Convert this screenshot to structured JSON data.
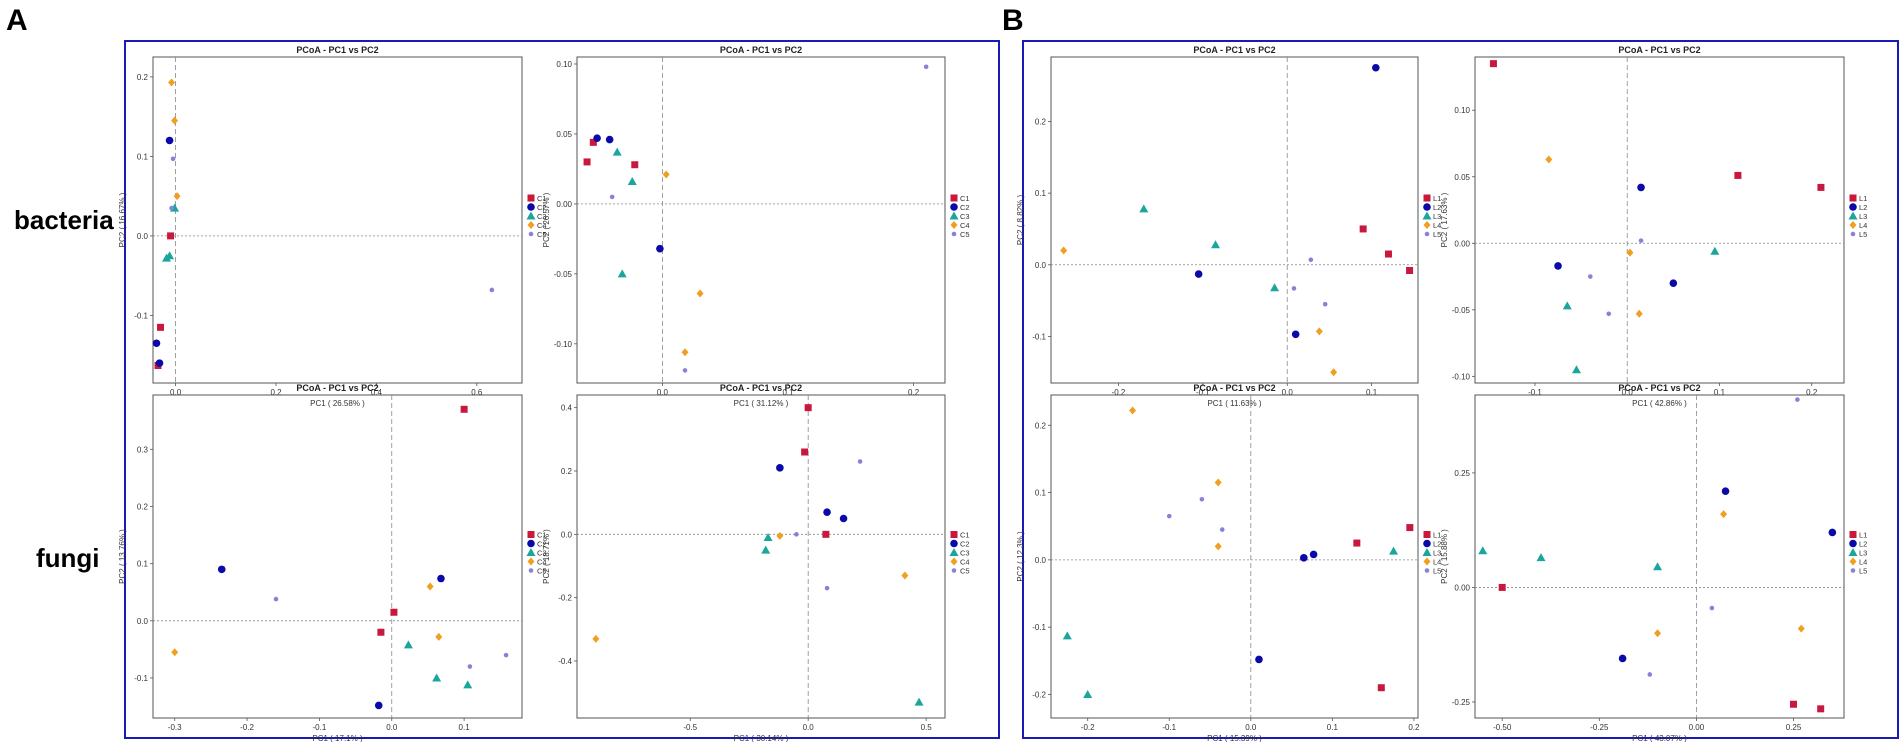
{
  "figure": {
    "panel_labels": [
      "A",
      "B"
    ],
    "row_labels": [
      "bacteria",
      "fungi"
    ]
  },
  "colors": {
    "box": "#1a1ab4",
    "series": [
      "#c8183e",
      "#0a0aa8",
      "#1aa69c",
      "#f0a020",
      "#8a80d8"
    ]
  },
  "chart_data": [
    {
      "type": "scatter",
      "title": "PCoA - PC1 vs PC2",
      "xlabel": "PC1 ( 26.58% )",
      "ylabel": "PC2 ( 16.67% )",
      "xlim": [
        -0.045,
        0.69
      ],
      "ylim": [
        -0.185,
        0.225
      ],
      "xticks": [
        0.0,
        0.2,
        0.4,
        0.6
      ],
      "xticklabels": [
        "0.0",
        "0.2",
        "0.4",
        "0.6"
      ],
      "yticks": [
        -0.1,
        0.0,
        0.1,
        0.2
      ],
      "yticklabels": [
        "-0.1",
        "0.0",
        "0.1",
        "0.2"
      ],
      "legend": [
        "C1",
        "C2",
        "C3",
        "C4",
        "C5"
      ],
      "series": [
        {
          "name": "C1",
          "marker": "square",
          "points": [
            [
              -0.035,
              -0.163
            ],
            [
              -0.03,
              -0.115
            ],
            [
              -0.01,
              0.0
            ]
          ]
        },
        {
          "name": "C2",
          "marker": "circle",
          "points": [
            [
              -0.038,
              -0.135
            ],
            [
              -0.032,
              -0.16
            ],
            [
              -0.012,
              0.12
            ]
          ]
        },
        {
          "name": "C3",
          "marker": "triangle",
          "points": [
            [
              -0.018,
              -0.028
            ],
            [
              -0.012,
              -0.025
            ],
            [
              -0.002,
              0.035
            ]
          ]
        },
        {
          "name": "C4",
          "marker": "diamond",
          "points": [
            [
              -0.008,
              0.193
            ],
            [
              -0.002,
              0.145
            ],
            [
              0.003,
              0.05
            ]
          ]
        },
        {
          "name": "C5",
          "marker": "star",
          "points": [
            [
              -0.005,
              0.097
            ],
            [
              -0.008,
              0.035
            ],
            [
              0.63,
              -0.068
            ]
          ]
        }
      ]
    },
    {
      "type": "scatter",
      "title": "PCoA - PC1 vs PC2",
      "xlabel": "PC1 ( 31.12% )",
      "ylabel": "PC2 ( 26.57% )",
      "xlim": [
        -0.068,
        0.225
      ],
      "ylim": [
        -0.128,
        0.105
      ],
      "xticks": [
        0.0,
        0.1,
        0.2
      ],
      "xticklabels": [
        "0.0",
        "0.1",
        "0.2"
      ],
      "yticks": [
        -0.1,
        -0.05,
        0.0,
        0.05,
        0.1
      ],
      "yticklabels": [
        "-0.10",
        "-0.05",
        "0.00",
        "0.05",
        "0.10"
      ],
      "legend": [
        "C1",
        "C2",
        "C3",
        "C4",
        "C5"
      ],
      "series": [
        {
          "name": "C1",
          "marker": "square",
          "points": [
            [
              -0.06,
              0.03
            ],
            [
              -0.055,
              0.044
            ],
            [
              -0.022,
              0.028
            ]
          ]
        },
        {
          "name": "C2",
          "marker": "circle",
          "points": [
            [
              -0.052,
              0.047
            ],
            [
              -0.042,
              0.046
            ],
            [
              -0.002,
              -0.032
            ]
          ]
        },
        {
          "name": "C3",
          "marker": "triangle",
          "points": [
            [
              -0.036,
              0.037
            ],
            [
              -0.024,
              0.016
            ],
            [
              -0.032,
              -0.05
            ]
          ]
        },
        {
          "name": "C4",
          "marker": "diamond",
          "points": [
            [
              0.003,
              0.021
            ],
            [
              0.03,
              -0.064
            ],
            [
              0.018,
              -0.106
            ]
          ]
        },
        {
          "name": "C5",
          "marker": "star",
          "points": [
            [
              -0.04,
              0.005
            ],
            [
              0.018,
              -0.119
            ],
            [
              0.21,
              0.098
            ]
          ]
        }
      ]
    },
    {
      "type": "scatter",
      "title": "PCoA - PC1 vs PC2",
      "xlabel": "PC1 ( 17.1% )",
      "ylabel": "PC2 ( 13.76% )",
      "xlim": [
        -0.33,
        0.18
      ],
      "ylim": [
        -0.17,
        0.395
      ],
      "xticks": [
        -0.3,
        -0.2,
        -0.1,
        0.0,
        0.1
      ],
      "xticklabels": [
        "-0.3",
        "-0.2",
        "-0.1",
        "0.0",
        "0.1"
      ],
      "yticks": [
        -0.1,
        0.0,
        0.1,
        0.2,
        0.3
      ],
      "yticklabels": [
        "-0.1",
        "0.0",
        "0.1",
        "0.2",
        "0.3"
      ],
      "legend": [
        "C1",
        "C2",
        "C3",
        "C4",
        "C5"
      ],
      "series": [
        {
          "name": "C1",
          "marker": "square",
          "points": [
            [
              0.1,
              0.37
            ],
            [
              0.003,
              0.015
            ],
            [
              -0.015,
              -0.02
            ]
          ]
        },
        {
          "name": "C2",
          "marker": "circle",
          "points": [
            [
              -0.235,
              0.09
            ],
            [
              0.068,
              0.074
            ],
            [
              -0.018,
              -0.148
            ]
          ]
        },
        {
          "name": "C3",
          "marker": "triangle",
          "points": [
            [
              0.023,
              -0.042
            ],
            [
              0.062,
              -0.1
            ],
            [
              0.105,
              -0.112
            ]
          ]
        },
        {
          "name": "C4",
          "marker": "diamond",
          "points": [
            [
              -0.3,
              -0.055
            ],
            [
              0.053,
              0.06
            ],
            [
              0.065,
              -0.028
            ]
          ]
        },
        {
          "name": "C5",
          "marker": "star",
          "points": [
            [
              -0.16,
              0.038
            ],
            [
              0.108,
              -0.08
            ],
            [
              0.158,
              -0.06
            ]
          ]
        }
      ]
    },
    {
      "type": "scatter",
      "title": "PCoA - PC1 vs PC2",
      "xlabel": "PC1 ( 30.14% )",
      "ylabel": "PC2 ( 18.71% )",
      "xlim": [
        -0.98,
        0.58
      ],
      "ylim": [
        -0.58,
        0.44
      ],
      "xticks": [
        -0.5,
        0.0,
        0.5
      ],
      "xticklabels": [
        "-0.5",
        "0.0",
        "0.5"
      ],
      "yticks": [
        -0.4,
        -0.2,
        0.0,
        0.2,
        0.4
      ],
      "yticklabels": [
        "-0.4",
        "-0.2",
        "0.0",
        "0.2",
        "0.4"
      ],
      "legend": [
        "C1",
        "C2",
        "C3",
        "C4",
        "C5"
      ],
      "series": [
        {
          "name": "C1",
          "marker": "square",
          "points": [
            [
              0.0,
              0.4
            ],
            [
              -0.015,
              0.26
            ],
            [
              0.075,
              0.0
            ]
          ]
        },
        {
          "name": "C2",
          "marker": "circle",
          "points": [
            [
              -0.12,
              0.21
            ],
            [
              0.08,
              0.07
            ],
            [
              0.15,
              0.05
            ]
          ]
        },
        {
          "name": "C3",
          "marker": "triangle",
          "points": [
            [
              -0.17,
              -0.01
            ],
            [
              -0.18,
              -0.05
            ],
            [
              0.47,
              -0.53
            ]
          ]
        },
        {
          "name": "C4",
          "marker": "diamond",
          "points": [
            [
              -0.9,
              -0.33
            ],
            [
              -0.12,
              -0.005
            ],
            [
              0.41,
              -0.13
            ]
          ]
        },
        {
          "name": "C5",
          "marker": "star",
          "points": [
            [
              -0.05,
              0.0
            ],
            [
              0.08,
              -0.17
            ],
            [
              0.22,
              0.23
            ]
          ]
        }
      ]
    },
    {
      "type": "scatter",
      "title": "PCoA - PC1 vs PC2",
      "xlabel": "PC1 ( 11.63% )",
      "ylabel": "PC2 ( 8.82% )",
      "xlim": [
        -0.28,
        0.155
      ],
      "ylim": [
        -0.165,
        0.29
      ],
      "xticks": [
        -0.2,
        -0.1,
        0.0,
        0.1
      ],
      "xticklabels": [
        "-0.2",
        "-0.1",
        "0.0",
        "0.1"
      ],
      "yticks": [
        -0.1,
        0.0,
        0.1,
        0.2
      ],
      "yticklabels": [
        "-0.1",
        "0.0",
        "0.1",
        "0.2"
      ],
      "legend": [
        "L1",
        "L2",
        "L3",
        "L4",
        "L5"
      ],
      "series": [
        {
          "name": "L1",
          "marker": "square",
          "points": [
            [
              0.09,
              0.05
            ],
            [
              0.12,
              0.015
            ],
            [
              0.145,
              -0.008
            ]
          ]
        },
        {
          "name": "L2",
          "marker": "circle",
          "points": [
            [
              0.105,
              0.275
            ],
            [
              -0.105,
              -0.013
            ],
            [
              0.01,
              -0.097
            ]
          ]
        },
        {
          "name": "L3",
          "marker": "triangle",
          "points": [
            [
              -0.17,
              0.078
            ],
            [
              -0.085,
              0.028
            ],
            [
              -0.015,
              -0.032
            ]
          ]
        },
        {
          "name": "L4",
          "marker": "diamond",
          "points": [
            [
              -0.265,
              0.02
            ],
            [
              0.038,
              -0.093
            ],
            [
              0.055,
              -0.15
            ]
          ]
        },
        {
          "name": "L5",
          "marker": "star",
          "points": [
            [
              0.028,
              0.007
            ],
            [
              0.008,
              -0.033
            ],
            [
              0.045,
              -0.055
            ]
          ]
        }
      ]
    },
    {
      "type": "scatter",
      "title": "PCoA - PC1 vs PC2",
      "xlabel": "PC1 ( 42.86% )",
      "ylabel": "PC2 ( 17.63% )",
      "xlim": [
        -0.165,
        0.235
      ],
      "ylim": [
        -0.105,
        0.14
      ],
      "xticks": [
        -0.1,
        0.0,
        0.1,
        0.2
      ],
      "xticklabels": [
        "-0.1",
        "0.0",
        "0.1",
        "0.2"
      ],
      "yticks": [
        -0.1,
        -0.05,
        0.0,
        0.05,
        0.1
      ],
      "yticklabels": [
        "-0.10",
        "-0.05",
        "0.00",
        "0.05",
        "0.10"
      ],
      "legend": [
        "L1",
        "L2",
        "L3",
        "L4",
        "L5"
      ],
      "series": [
        {
          "name": "L1",
          "marker": "square",
          "points": [
            [
              -0.145,
              0.135
            ],
            [
              0.12,
              0.051
            ],
            [
              0.21,
              0.042
            ]
          ]
        },
        {
          "name": "L2",
          "marker": "circle",
          "points": [
            [
              0.015,
              0.042
            ],
            [
              -0.075,
              -0.017
            ],
            [
              0.05,
              -0.03
            ]
          ]
        },
        {
          "name": "L3",
          "marker": "triangle",
          "points": [
            [
              -0.065,
              -0.047
            ],
            [
              -0.055,
              -0.095
            ],
            [
              0.095,
              -0.006
            ]
          ]
        },
        {
          "name": "L4",
          "marker": "diamond",
          "points": [
            [
              -0.085,
              0.063
            ],
            [
              0.003,
              -0.007
            ],
            [
              0.013,
              -0.053
            ]
          ]
        },
        {
          "name": "L5",
          "marker": "star",
          "points": [
            [
              0.015,
              0.002
            ],
            [
              -0.04,
              -0.025
            ],
            [
              -0.02,
              -0.053
            ]
          ]
        }
      ]
    },
    {
      "type": "scatter",
      "title": "PCoA - PC1 vs PC2",
      "xlabel": "PC1 ( 15.39% )",
      "ylabel": "PC2 ( 12.3% )",
      "xlim": [
        -0.245,
        0.205
      ],
      "ylim": [
        -0.235,
        0.245
      ],
      "xticks": [
        -0.2,
        -0.1,
        0.0,
        0.1,
        0.2
      ],
      "xticklabels": [
        "-0.2",
        "-0.1",
        "0.0",
        "0.1",
        "0.2"
      ],
      "yticks": [
        -0.2,
        -0.1,
        0.0,
        0.1,
        0.2
      ],
      "yticklabels": [
        "-0.2",
        "-0.1",
        "0.0",
        "0.1",
        "0.2"
      ],
      "legend": [
        "L1",
        "L2",
        "L3",
        "L4",
        "L5"
      ],
      "series": [
        {
          "name": "L1",
          "marker": "square",
          "points": [
            [
              0.195,
              0.048
            ],
            [
              0.13,
              0.025
            ],
            [
              0.16,
              -0.19
            ]
          ]
        },
        {
          "name": "L2",
          "marker": "circle",
          "points": [
            [
              0.065,
              0.003
            ],
            [
              0.077,
              0.008
            ],
            [
              0.01,
              -0.148
            ]
          ]
        },
        {
          "name": "L3",
          "marker": "triangle",
          "points": [
            [
              -0.225,
              -0.113
            ],
            [
              -0.2,
              -0.2
            ],
            [
              0.175,
              0.013
            ]
          ]
        },
        {
          "name": "L4",
          "marker": "diamond",
          "points": [
            [
              -0.145,
              0.222
            ],
            [
              -0.04,
              0.115
            ],
            [
              -0.04,
              0.02
            ]
          ]
        },
        {
          "name": "L5",
          "marker": "star",
          "points": [
            [
              -0.1,
              0.065
            ],
            [
              -0.06,
              0.09
            ],
            [
              -0.035,
              0.045
            ]
          ]
        }
      ]
    },
    {
      "type": "scatter",
      "title": "PCoA - PC1 vs PC2",
      "xlabel": "PC1 ( 43.07% )",
      "ylabel": "PC2 ( 15.88% )",
      "xlim": [
        -0.57,
        0.38
      ],
      "ylim": [
        -0.285,
        0.42
      ],
      "xticks": [
        -0.5,
        -0.25,
        0.0,
        0.25
      ],
      "xticklabels": [
        "-0.50",
        "-0.25",
        "0.00",
        "0.25"
      ],
      "yticks": [
        -0.25,
        0.0,
        0.25
      ],
      "yticklabels": [
        "-0.25",
        "0.00",
        "0.25"
      ],
      "legend": [
        "L1",
        "L2",
        "L3",
        "L4",
        "L5"
      ],
      "series": [
        {
          "name": "L1",
          "marker": "square",
          "points": [
            [
              -0.5,
              0.0
            ],
            [
              0.25,
              -0.255
            ],
            [
              0.32,
              -0.265
            ]
          ]
        },
        {
          "name": "L2",
          "marker": "circle",
          "points": [
            [
              0.075,
              0.21
            ],
            [
              0.35,
              0.12
            ],
            [
              -0.19,
              -0.155
            ]
          ]
        },
        {
          "name": "L3",
          "marker": "triangle",
          "points": [
            [
              -0.55,
              0.08
            ],
            [
              -0.4,
              0.065
            ],
            [
              -0.1,
              0.045
            ]
          ]
        },
        {
          "name": "L4",
          "marker": "diamond",
          "points": [
            [
              0.07,
              0.16
            ],
            [
              0.27,
              -0.09
            ],
            [
              -0.1,
              -0.1
            ]
          ]
        },
        {
          "name": "L5",
          "marker": "star",
          "points": [
            [
              0.26,
              0.41
            ],
            [
              0.04,
              -0.045
            ],
            [
              -0.12,
              -0.19
            ]
          ]
        }
      ]
    }
  ]
}
